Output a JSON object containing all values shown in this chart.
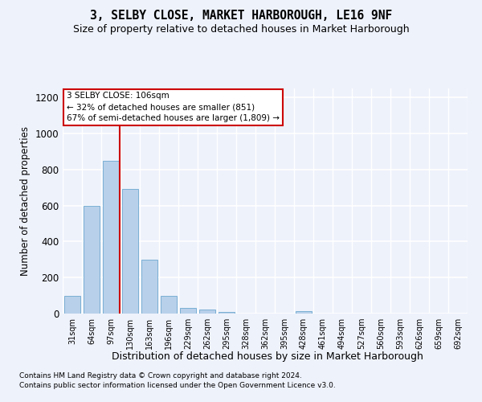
{
  "title": "3, SELBY CLOSE, MARKET HARBOROUGH, LE16 9NF",
  "subtitle": "Size of property relative to detached houses in Market Harborough",
  "xlabel": "Distribution of detached houses by size in Market Harborough",
  "ylabel": "Number of detached properties",
  "bar_color": "#b8d0ea",
  "bar_edge_color": "#7aafd4",
  "categories": [
    "31sqm",
    "64sqm",
    "97sqm",
    "130sqm",
    "163sqm",
    "196sqm",
    "229sqm",
    "262sqm",
    "295sqm",
    "328sqm",
    "362sqm",
    "395sqm",
    "428sqm",
    "461sqm",
    "494sqm",
    "527sqm",
    "560sqm",
    "593sqm",
    "626sqm",
    "659sqm",
    "692sqm"
  ],
  "values": [
    100,
    600,
    850,
    690,
    300,
    100,
    30,
    22,
    10,
    0,
    0,
    0,
    12,
    0,
    0,
    0,
    0,
    0,
    0,
    0,
    0
  ],
  "ylim": [
    0,
    1250
  ],
  "yticks": [
    0,
    200,
    400,
    600,
    800,
    1000,
    1200
  ],
  "annotation_text": "3 SELBY CLOSE: 106sqm\n← 32% of detached houses are smaller (851)\n67% of semi-detached houses are larger (1,809) →",
  "footer_line1": "Contains HM Land Registry data © Crown copyright and database right 2024.",
  "footer_line2": "Contains public sector information licensed under the Open Government Licence v3.0.",
  "background_color": "#eef2fb",
  "grid_color": "#ffffff"
}
